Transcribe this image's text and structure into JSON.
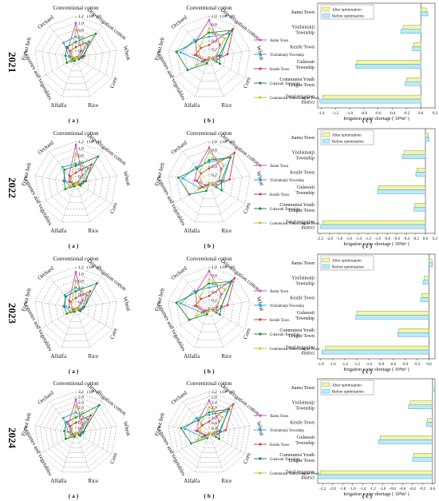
{
  "years": [
    "2021",
    "2022",
    "2023",
    "2024"
  ],
  "radar_axes": [
    "Conventional cotton",
    "Drip irrigation cotton",
    "Wheat",
    "Corn",
    "Rice",
    "Alfalfa",
    "Legumes and vegetables",
    "Forest belt",
    "Orchard"
  ],
  "radar_unit": "(10⁸ m³)",
  "radar_ticks_a": [
    "1.2",
    "1.0",
    "0.8",
    "0.6",
    "0.4",
    "0.2",
    "0.0"
  ],
  "radar_ticks_b": [
    "1.0",
    "0.8",
    "0.6",
    "0.4",
    "0.2",
    "0.0"
  ],
  "radar_ticks_a_2024": [
    "3.2",
    "2.8",
    "2.4",
    "2.0",
    "1.6",
    "1.2",
    "0.8",
    "0.4",
    "0.0"
  ],
  "radar_ticks_b_2024": [
    "3.2",
    "2.8",
    "2.4",
    "2.0",
    "1.6",
    "1.2",
    "0.8",
    "0.4",
    "0.0"
  ],
  "towns": [
    "Jiamu Town",
    "Yixilaimaiji Township",
    "Kezile Town",
    "Gulawati Township",
    "Communist Youth League Town"
  ],
  "panel_labels": [
    "( a )",
    "( b )",
    "( c )"
  ],
  "bar_categories": [
    "Jiamu Town",
    "Yixilaimaiji Township",
    "Kezile Town",
    "Gulawati Township",
    "Communist Youth League Town",
    "Total irrigation district"
  ],
  "bar_legend": [
    "After optimisation",
    "Before optimisation"
  ],
  "bar_xlabel": "Irrigation water shortage ( 10⁸m³ )",
  "colors": {
    "towns": [
      "#d24cc6",
      "#2aa9e0",
      "#cf4444",
      "#1f8a3c",
      "#b7c93a"
    ],
    "after": "#f7f3a6",
    "before": "#bde9f7",
    "after_edge": "#7fa24a",
    "before_edge": "#3aa8d8"
  },
  "chart_data": [
    {
      "type": "bar",
      "year": "2021",
      "categories": [
        "Jiamu Town",
        "Yixilaimaiji Township",
        "Kezile Town",
        "Gulawati Township",
        "Communist Youth League Town",
        "Total irrigation district"
      ],
      "xticks": [
        "-1.4",
        "-1.2",
        "-1.0",
        "-0.8",
        "-0.6",
        "-0.4",
        "-0.2",
        "0.0",
        "0.2"
      ],
      "xlim": [
        -1.45,
        0.2
      ],
      "series": [
        {
          "name": "After optimisation",
          "values": [
            0.08,
            -0.25,
            -0.1,
            -0.9,
            -0.2,
            -1.38
          ]
        },
        {
          "name": "Before optimisation",
          "values": [
            0.1,
            -0.28,
            -0.12,
            -0.92,
            -0.22,
            -1.42
          ]
        }
      ]
    },
    {
      "type": "bar",
      "year": "2022",
      "categories": [
        "Jiamu Town",
        "Yixilaimaiji Township",
        "Kezile Town",
        "Gulawati Township",
        "Communist Youth League Town",
        "Total irrigation district"
      ],
      "xticks": [
        "-2.2",
        "-2.0",
        "-1.8",
        "-1.6",
        "-1.4",
        "-1.2",
        "-1.0",
        "-0.8",
        "-0.6",
        "-0.4",
        "-0.2",
        "0.0",
        "0.2"
      ],
      "xlim": [
        -2.25,
        0.2
      ],
      "series": [
        {
          "name": "After optimisation",
          "values": [
            0.06,
            -0.45,
            -0.18,
            -0.98,
            -0.22,
            -2.15
          ]
        },
        {
          "name": "Before optimisation",
          "values": [
            0.08,
            -0.48,
            -0.2,
            -1.0,
            -0.24,
            -2.2
          ]
        }
      ]
    },
    {
      "type": "bar",
      "year": "2023",
      "categories": [
        "Jiamu Town",
        "Yixilaimaiji Township",
        "Kezile Town",
        "Gulawati Township",
        "Communist Youth League Town",
        "Total irrigation district"
      ],
      "xticks": [
        "-1.8",
        "-1.6",
        "-1.4",
        "-1.2",
        "-1.0",
        "-0.8",
        "-0.6",
        "-0.4",
        "-0.2",
        "0.0"
      ],
      "xlim": [
        -1.85,
        0.1
      ],
      "series": [
        {
          "name": "After optimisation",
          "values": [
            0.05,
            -0.08,
            -0.12,
            -1.2,
            -0.5,
            -1.72
          ]
        },
        {
          "name": "Before optimisation",
          "values": [
            0.06,
            -0.1,
            -0.14,
            -1.22,
            -0.52,
            -1.78
          ]
        }
      ]
    },
    {
      "type": "bar",
      "year": "2024",
      "categories": [
        "Jiamu Town",
        "Yixilaimaiji Township",
        "Kezile Town",
        "Gulawati Township",
        "Communist Youth League Town",
        "Total irrigation district"
      ],
      "xticks": [
        "-2.2",
        "-2.0",
        "-1.8",
        "-1.6",
        "-1.4",
        "-1.2",
        "-1.0",
        "-0.8",
        "-0.6",
        "-0.4",
        "-0.2",
        "0.0"
      ],
      "xlim": [
        -2.3,
        0.05
      ],
      "series": [
        {
          "name": "After optimisation",
          "values": [
            0.01,
            -0.45,
            -0.1,
            -1.05,
            -0.38,
            -2.25
          ]
        },
        {
          "name": "Before optimisation",
          "values": [
            0.02,
            -0.48,
            -0.12,
            -1.08,
            -0.4,
            -2.3
          ]
        }
      ]
    }
  ],
  "radar_data": [
    {
      "year": "2021",
      "max_a": 1.2,
      "max_b": 1.0,
      "a": [
        [
          1.0,
          0.25,
          0.05,
          0.05,
          0.0,
          0.05,
          0.05,
          0.15,
          0.35
        ],
        [
          0.6,
          0.5,
          0.15,
          0.1,
          0.0,
          0.1,
          0.15,
          0.2,
          0.55
        ],
        [
          0.3,
          0.6,
          0.25,
          0.1,
          0.0,
          0.05,
          0.1,
          0.1,
          0.25
        ],
        [
          0.45,
          0.9,
          0.2,
          0.1,
          0.0,
          0.1,
          0.3,
          0.3,
          0.4
        ],
        [
          0.8,
          0.4,
          0.1,
          0.05,
          0.0,
          0.05,
          0.2,
          0.1,
          0.2
        ]
      ],
      "b": [
        [
          0.9,
          0.4,
          0.2,
          0.1,
          0.0,
          0.05,
          0.1,
          0.3,
          0.5
        ],
        [
          0.5,
          0.75,
          0.3,
          0.2,
          0.0,
          0.1,
          0.2,
          0.7,
          0.55
        ],
        [
          0.3,
          0.9,
          0.45,
          0.15,
          0.0,
          0.05,
          0.15,
          0.35,
          0.3
        ],
        [
          0.6,
          0.85,
          0.25,
          0.3,
          0.0,
          0.15,
          0.6,
          0.8,
          0.5
        ],
        [
          0.7,
          0.6,
          0.15,
          0.15,
          0.0,
          0.1,
          0.35,
          0.25,
          0.35
        ]
      ]
    },
    {
      "year": "2022",
      "max_a": 1.2,
      "max_b": 1.0,
      "a": [
        [
          1.1,
          0.3,
          0.05,
          0.05,
          0.0,
          0.05,
          0.05,
          0.2,
          0.3
        ],
        [
          0.55,
          0.55,
          0.2,
          0.1,
          0.0,
          0.1,
          0.2,
          0.3,
          0.6
        ],
        [
          0.3,
          0.7,
          0.3,
          0.1,
          0.0,
          0.05,
          0.1,
          0.15,
          0.25
        ],
        [
          0.5,
          1.0,
          0.25,
          0.15,
          0.0,
          0.1,
          0.35,
          0.35,
          0.5
        ],
        [
          0.85,
          0.45,
          0.1,
          0.05,
          0.0,
          0.05,
          0.25,
          0.1,
          0.2
        ]
      ],
      "b": [
        [
          0.85,
          0.45,
          0.25,
          0.1,
          0.0,
          0.05,
          0.1,
          0.35,
          0.45
        ],
        [
          0.5,
          0.8,
          0.35,
          0.2,
          0.0,
          0.1,
          0.25,
          0.65,
          0.5
        ],
        [
          0.35,
          0.95,
          0.5,
          0.15,
          0.0,
          0.05,
          0.2,
          0.3,
          0.3
        ],
        [
          0.55,
          0.8,
          0.3,
          0.35,
          0.0,
          0.2,
          0.55,
          0.75,
          0.45
        ],
        [
          0.75,
          0.55,
          0.2,
          0.15,
          0.0,
          0.1,
          0.3,
          0.2,
          0.35
        ]
      ]
    },
    {
      "year": "2023",
      "max_a": 1.2,
      "max_b": 1.0,
      "a": [
        [
          1.05,
          0.3,
          0.05,
          0.05,
          0.0,
          0.05,
          0.05,
          0.2,
          0.3
        ],
        [
          0.6,
          0.5,
          0.2,
          0.1,
          0.0,
          0.1,
          0.2,
          0.3,
          0.5
        ],
        [
          0.3,
          0.65,
          0.25,
          0.1,
          0.0,
          0.05,
          0.1,
          0.1,
          0.25
        ],
        [
          0.5,
          0.95,
          0.25,
          0.15,
          0.0,
          0.1,
          0.3,
          0.35,
          0.45
        ],
        [
          0.8,
          0.45,
          0.1,
          0.05,
          0.0,
          0.05,
          0.25,
          0.1,
          0.2
        ]
      ],
      "b": [
        [
          0.9,
          0.45,
          0.2,
          0.1,
          0.0,
          0.05,
          0.1,
          0.3,
          0.5
        ],
        [
          0.5,
          0.8,
          0.3,
          0.2,
          0.0,
          0.1,
          0.2,
          0.7,
          0.55
        ],
        [
          0.3,
          0.95,
          0.45,
          0.15,
          0.0,
          0.05,
          0.15,
          0.35,
          0.3
        ],
        [
          0.6,
          0.85,
          0.3,
          0.3,
          0.0,
          0.15,
          0.55,
          0.8,
          0.5
        ],
        [
          0.7,
          0.6,
          0.15,
          0.15,
          0.0,
          0.1,
          0.35,
          0.25,
          0.35
        ]
      ]
    },
    {
      "year": "2024",
      "max_a": 3.2,
      "max_b": 3.2,
      "a": [
        [
          2.6,
          0.8,
          0.2,
          0.1,
          0.0,
          0.1,
          0.15,
          0.4,
          0.9
        ],
        [
          1.6,
          1.4,
          0.4,
          0.3,
          0.0,
          0.2,
          0.4,
          0.6,
          1.5
        ],
        [
          0.8,
          1.8,
          0.6,
          0.3,
          0.0,
          0.1,
          0.3,
          0.3,
          0.7
        ],
        [
          1.2,
          2.8,
          0.6,
          0.4,
          0.0,
          0.3,
          0.9,
          0.9,
          1.1
        ],
        [
          2.1,
          1.1,
          0.3,
          0.1,
          0.0,
          0.1,
          0.6,
          0.3,
          0.5
        ]
      ],
      "b": [
        [
          2.5,
          1.2,
          0.6,
          0.3,
          0.0,
          0.1,
          0.3,
          0.9,
          1.3
        ],
        [
          1.4,
          2.2,
          0.9,
          0.6,
          0.0,
          0.3,
          0.6,
          1.9,
          1.5
        ],
        [
          0.9,
          2.9,
          1.3,
          0.4,
          0.0,
          0.1,
          0.4,
          1.0,
          0.8
        ],
        [
          1.6,
          2.4,
          0.8,
          0.9,
          0.0,
          0.4,
          1.6,
          2.2,
          1.3
        ],
        [
          2.0,
          1.6,
          0.4,
          0.4,
          0.0,
          0.3,
          1.0,
          0.7,
          1.0
        ]
      ]
    }
  ]
}
